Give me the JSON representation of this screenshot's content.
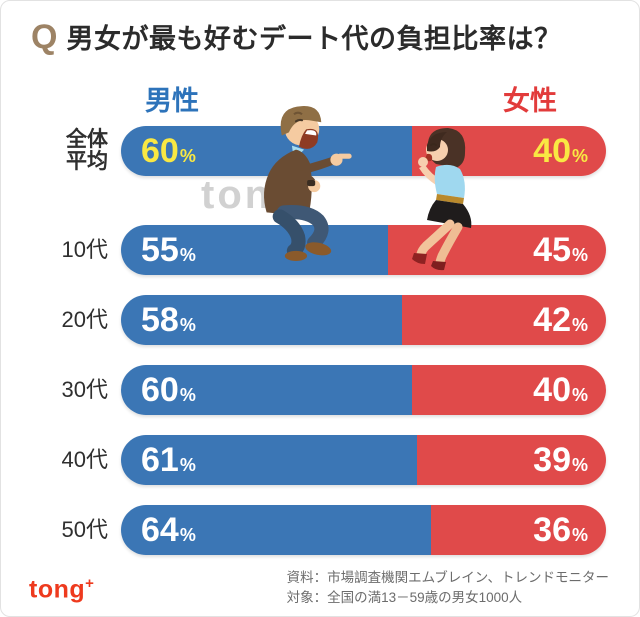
{
  "title": {
    "q_mark": "Q",
    "text": "男女が最も好むデート代の負担比率は？"
  },
  "legend": {
    "male": "男性",
    "female": "女性"
  },
  "chart_data": {
    "type": "bar",
    "orientation": "horizontal",
    "stacked": true,
    "title": "男女が最も好むデート代の負担比率は？",
    "categories": [
      "全体平均",
      "10代",
      "20代",
      "30代",
      "40代",
      "50代"
    ],
    "categories_display": [
      "全体\n平均",
      "10代",
      "20代",
      "30代",
      "40代",
      "50代"
    ],
    "series": [
      {
        "name": "男性",
        "color": "#3b76b5",
        "values": [
          60,
          55,
          58,
          60,
          61,
          64
        ]
      },
      {
        "name": "女性",
        "color": "#e04a4a",
        "values": [
          40,
          45,
          42,
          40,
          39,
          36
        ]
      }
    ],
    "value_suffix": "%",
    "xlim": [
      0,
      100
    ],
    "legend_position": "top",
    "grid": false,
    "highlight_row": 0,
    "highlight_value_color": "#f9e843",
    "value_color": "#ffffff"
  },
  "watermark": "tong",
  "watermark_plus": "+",
  "footer": {
    "logo": "tong",
    "logo_plus": "+",
    "source_line1": "資料：市場調査機関エムブレイン、トレンドモニター",
    "source_line2": "対象：全国の満13－59歳の男女1000人"
  },
  "colors": {
    "male_bar": "#3b76b5",
    "female_bar": "#e04a4a",
    "male_legend": "#2d73ba",
    "female_legend": "#e23b3b",
    "highlight_yellow": "#f9e843",
    "q_mark": "#9d8365",
    "logo": "#ee3a1e"
  }
}
